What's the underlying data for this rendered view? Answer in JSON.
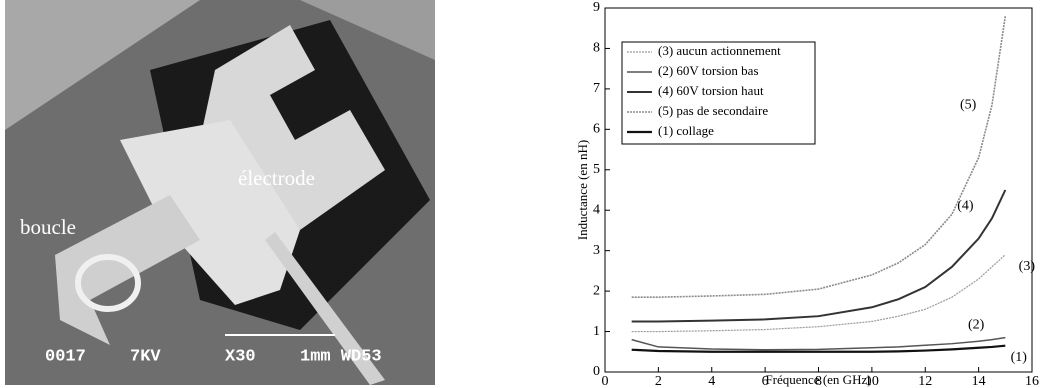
{
  "photo": {
    "labels": [
      "boucle",
      "électrode"
    ],
    "info": [
      "0017",
      "7KV",
      "X30",
      "1mm WD53"
    ]
  },
  "chart_data": {
    "type": "line",
    "xlabel": "Fréquence (en GHz)",
    "ylabel": "Inductance (en nH)",
    "xlim": [
      0,
      16
    ],
    "xticks": [
      0,
      2,
      4,
      6,
      8,
      10,
      12,
      14,
      16
    ],
    "ylim": [
      0,
      9
    ],
    "yticks": [
      0,
      1,
      2,
      3,
      4,
      5,
      6,
      7,
      8,
      9
    ],
    "legend": "upper left",
    "x": [
      1,
      2,
      4,
      6,
      8,
      10,
      11,
      12,
      13,
      14,
      14.5,
      15
    ],
    "series": [
      {
        "name": "(3) aucun actionnement",
        "color": "#9a9a9a",
        "values": [
          1.0,
          1.0,
          1.02,
          1.05,
          1.12,
          1.25,
          1.38,
          1.55,
          1.85,
          2.3,
          2.6,
          2.9
        ]
      },
      {
        "name": "(2) 60V torsion bas",
        "color": "#555555",
        "values": [
          0.8,
          0.62,
          0.57,
          0.55,
          0.56,
          0.6,
          0.62,
          0.66,
          0.7,
          0.76,
          0.8,
          0.85
        ]
      },
      {
        "name": "(4) 60V torsion haut",
        "color": "#333333",
        "values": [
          1.25,
          1.25,
          1.27,
          1.3,
          1.38,
          1.6,
          1.8,
          2.1,
          2.6,
          3.3,
          3.8,
          4.5
        ]
      },
      {
        "name": "(5) pas de secondaire",
        "color": "#8a8a8a",
        "values": [
          1.85,
          1.85,
          1.88,
          1.92,
          2.05,
          2.4,
          2.7,
          3.15,
          3.9,
          5.3,
          6.6,
          8.8
        ]
      },
      {
        "name": "(1) collage",
        "color": "#111111",
        "values": [
          0.55,
          0.52,
          0.5,
          0.5,
          0.5,
          0.5,
          0.51,
          0.53,
          0.56,
          0.6,
          0.62,
          0.65
        ]
      }
    ],
    "annotations": [
      "(5)",
      "(4)",
      "(3)",
      "(2)",
      "(1)"
    ]
  }
}
